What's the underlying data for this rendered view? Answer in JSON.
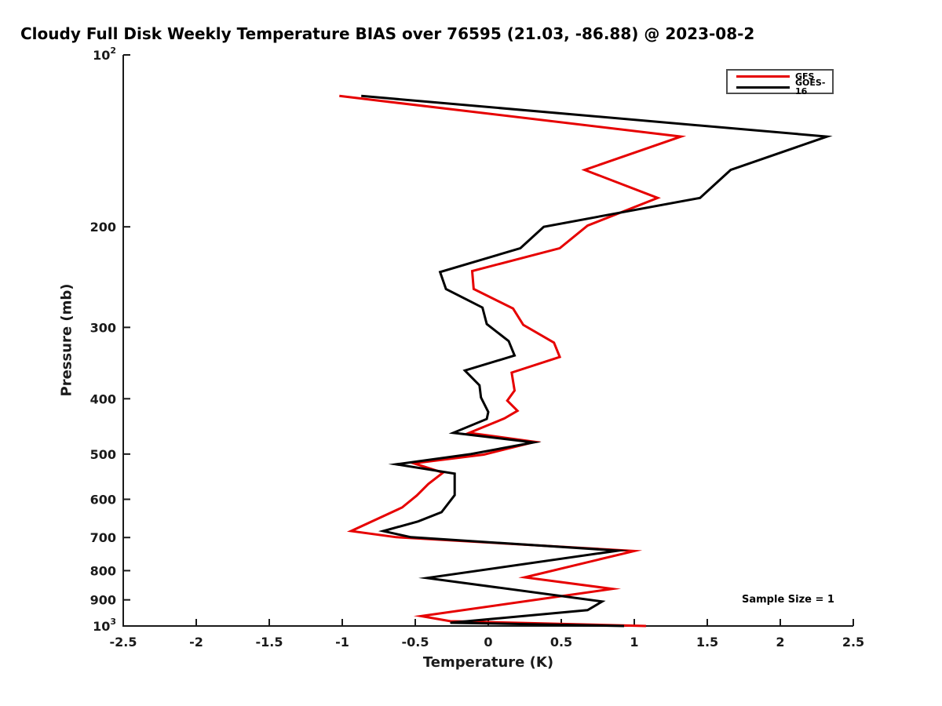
{
  "title": "Cloudy Full Disk Weekly Temperature BIAS over 76595 (21.03, -86.88) @ 2023-08-2",
  "annotations": {
    "sample_size": "Sample Size = 1"
  },
  "colors": {
    "gfs_red": "#e60000",
    "goes_black": "#000000",
    "axis": "#1a1a1a",
    "legend_border": "#4d4d4d",
    "background": "#ffffff"
  },
  "chart_data": {
    "type": "line",
    "title": "Cloudy Full Disk Weekly Temperature BIAS over 76595 (21.03, -86.88) @ 2023-08-2",
    "xlabel": "Temperature (K)",
    "ylabel": "Pressure (mb)",
    "xlim": [
      -2.5,
      2.5
    ],
    "ylim": [
      100,
      1000
    ],
    "y_scale": "log",
    "y_inverted": true,
    "grid": false,
    "x_ticks": [
      -2.5,
      -2,
      -1.5,
      -1,
      -0.5,
      0,
      0.5,
      1,
      1.5,
      2,
      2.5
    ],
    "x_tick_labels": [
      "-2.5",
      "-2",
      "-1.5",
      "-1",
      "-0.5",
      "0",
      "0.5",
      "1",
      "1.5",
      "2",
      "2.5"
    ],
    "y_ticks": [
      100,
      200,
      300,
      400,
      500,
      600,
      700,
      800,
      900,
      1000
    ],
    "y_tick_labels": [
      "10²",
      "200",
      "300",
      "400",
      "500",
      "600",
      "700",
      "800",
      "900",
      "10³"
    ],
    "legend": {
      "position": "upper right",
      "entries": [
        {
          "label": "GFS",
          "color": "#e60000"
        },
        {
          "label": "GOES-16",
          "color": "#000000"
        }
      ]
    },
    "series": [
      {
        "name": "GFS",
        "color": "#e60000",
        "units": {
          "x": "K",
          "y": "mb"
        },
        "points": [
          [
            -1.02,
            118
          ],
          [
            1.32,
            139
          ],
          [
            0.66,
            159
          ],
          [
            1.16,
            178
          ],
          [
            0.68,
            199
          ],
          [
            0.49,
            218
          ],
          [
            -0.11,
            239
          ],
          [
            -0.1,
            257
          ],
          [
            0.17,
            278
          ],
          [
            0.24,
            297
          ],
          [
            0.45,
            319
          ],
          [
            0.49,
            338
          ],
          [
            0.16,
            360
          ],
          [
            0.18,
            387
          ],
          [
            0.13,
            403
          ],
          [
            0.2,
            420
          ],
          [
            0.11,
            433
          ],
          [
            -0.13,
            459
          ],
          [
            0.32,
            476
          ],
          [
            -0.03,
            501
          ],
          [
            -0.51,
            519
          ],
          [
            -0.31,
            539
          ],
          [
            -0.41,
            564
          ],
          [
            -0.49,
            591
          ],
          [
            -0.59,
            620
          ],
          [
            -0.94,
            682
          ],
          [
            -0.63,
            699
          ],
          [
            1.0,
            739
          ],
          [
            0.25,
            822
          ],
          [
            0.85,
            861
          ],
          [
            -0.46,
            961
          ],
          [
            -0.26,
            981
          ],
          [
            1.08,
            1000
          ]
        ]
      },
      {
        "name": "GOES-16",
        "color": "#000000",
        "units": {
          "x": "K",
          "y": "mb"
        },
        "points": [
          [
            -0.87,
            118
          ],
          [
            2.32,
            139
          ],
          [
            1.66,
            159
          ],
          [
            1.45,
            178
          ],
          [
            0.38,
            200
          ],
          [
            0.22,
            218
          ],
          [
            -0.33,
            240
          ],
          [
            -0.29,
            257
          ],
          [
            -0.04,
            277
          ],
          [
            -0.01,
            296
          ],
          [
            0.14,
            317
          ],
          [
            0.18,
            336
          ],
          [
            -0.16,
            357
          ],
          [
            -0.06,
            379
          ],
          [
            -0.05,
            398
          ],
          [
            0.0,
            422
          ],
          [
            -0.01,
            434
          ],
          [
            -0.24,
            459
          ],
          [
            0.31,
            477
          ],
          [
            -0.12,
            500
          ],
          [
            -0.63,
            521
          ],
          [
            -0.23,
            541
          ],
          [
            -0.23,
            590
          ],
          [
            -0.32,
            632
          ],
          [
            -0.48,
            656
          ],
          [
            -0.72,
            682
          ],
          [
            -0.53,
            699
          ],
          [
            0.89,
            738
          ],
          [
            -0.42,
            824
          ],
          [
            0.78,
            906
          ],
          [
            0.68,
            938
          ],
          [
            -0.26,
            987
          ],
          [
            0.93,
            1000
          ]
        ]
      }
    ]
  }
}
